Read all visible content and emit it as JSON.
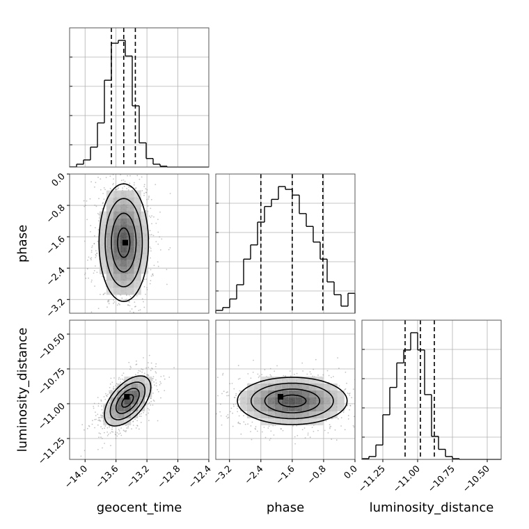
{
  "chart_data": {
    "type": "corner",
    "parameters": [
      "geocent_time",
      "phase",
      "luminosity_distance"
    ],
    "axis_labels": {
      "x": [
        "geocent_time",
        "phase",
        "luminosity_distance"
      ],
      "y": [
        "",
        "phase",
        "luminosity_distance"
      ]
    },
    "ranges": {
      "geocent_time": [
        -14.2,
        -12.4
      ],
      "phase": [
        -3.55,
        0.0
      ],
      "luminosity_distance": [
        -11.4,
        -10.4
      ]
    },
    "ticks": {
      "geocent_time": [
        "-14.0",
        "-13.6",
        "-13.2",
        "-12.8",
        "-12.4"
      ],
      "phase": [
        "-3.2",
        "-2.4",
        "-1.6",
        "-0.8",
        "0.0"
      ],
      "luminosity_distance": [
        "-11.25",
        "-11.00",
        "-10.75",
        "-10.50"
      ]
    },
    "tick_values": {
      "geocent_time": [
        -14.0,
        -13.6,
        -13.2,
        -12.8,
        -12.4
      ],
      "phase": [
        -3.2,
        -2.4,
        -1.6,
        -0.8,
        0.0
      ],
      "luminosity_distance": [
        -11.25,
        -11.0,
        -10.75,
        -10.5
      ]
    },
    "quantiles": {
      "geocent_time": [
        -13.66,
        -13.5,
        -13.35
      ],
      "phase": [
        -2.4,
        -1.6,
        -0.82
      ],
      "luminosity_distance": [
        -11.09,
        -10.98,
        -10.88
      ]
    },
    "histograms": {
      "geocent_time": {
        "edges": [
          -14.2,
          -14.11,
          -14.02,
          -13.93,
          -13.84,
          -13.75,
          -13.66,
          -13.57,
          -13.48,
          -13.39,
          -13.3,
          -13.21,
          -13.12,
          -13.03,
          -12.94,
          -12.85,
          -12.76,
          -12.67,
          -12.58,
          -12.49,
          -12.4
        ],
        "counts": [
          0.1,
          2,
          5,
          14,
          31,
          61,
          87,
          89,
          78,
          43,
          17,
          6,
          2,
          0.6,
          0,
          0,
          0,
          0,
          0,
          0
        ]
      },
      "phase": {
        "edges": [
          -3.55,
          -3.3725,
          -3.195,
          -3.0175,
          -2.84,
          -2.6625,
          -2.485,
          -2.3075,
          -2.13,
          -1.9525,
          -1.775,
          -1.5975,
          -1.42,
          -1.2425,
          -1.065,
          -0.8875,
          -0.71,
          -0.5325,
          -0.355,
          -0.1775,
          0.0
        ],
        "counts": [
          2,
          4,
          10,
          20,
          38,
          48,
          64,
          75,
          80,
          89,
          87,
          83,
          70,
          61,
          50,
          38,
          22,
          13,
          5,
          14
        ]
      },
      "luminosity_distance": {
        "edges": [
          -11.4,
          -11.35,
          -11.3,
          -11.25,
          -11.2,
          -11.15,
          -11.1,
          -11.05,
          -11.0,
          -10.95,
          -10.9,
          -10.85,
          -10.8,
          -10.75,
          -10.7,
          -10.65,
          -10.6,
          -10.55,
          -10.5,
          -10.45,
          -10.4
        ],
        "counts": [
          0.5,
          2,
          10,
          31,
          50,
          67,
          76,
          88,
          76,
          45,
          16,
          7,
          2,
          0.5,
          0,
          0,
          0,
          0,
          0,
          0
        ]
      }
    },
    "panels_2d": [
      {
        "x": "geocent_time",
        "y": "phase",
        "mean": [
          -13.5,
          -1.75
        ],
        "sigma": [
          0.16,
          0.75
        ],
        "corr": 0.0,
        "peak": [
          -13.48,
          -1.75
        ]
      },
      {
        "x": "geocent_time",
        "y": "luminosity_distance",
        "mean": [
          -13.45,
          -10.98
        ],
        "sigma": [
          0.15,
          0.09
        ],
        "corr": 0.55,
        "peak": [
          -13.46,
          -10.95
        ]
      },
      {
        "x": "phase",
        "y": "luminosity_distance",
        "mean": [
          -1.6,
          -10.98
        ],
        "sigma": [
          0.7,
          0.085
        ],
        "corr": 0.0,
        "peak": [
          -1.9,
          -10.95
        ]
      }
    ],
    "contour_levels": [
      "0.5-sigma",
      "1-sigma",
      "1.5-sigma",
      "2-sigma"
    ]
  }
}
